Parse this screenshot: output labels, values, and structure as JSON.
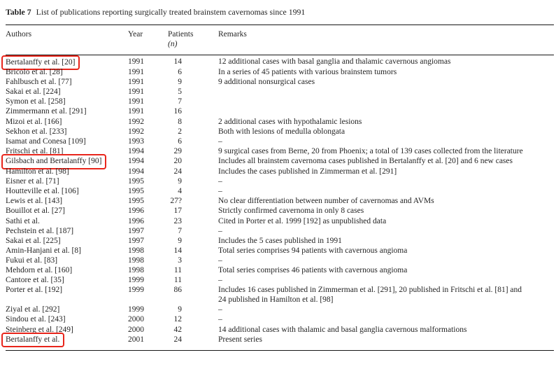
{
  "highlight_color": "#e8251b",
  "table": {
    "label": "Table 7",
    "caption": "List of publications reporting surgically treated brainstem cavernomas since 1991",
    "header": {
      "authors": "Authors",
      "year": "Year",
      "patients": "Patients",
      "patients_unit": "(n)",
      "remarks": "Remarks"
    },
    "rows": [
      {
        "authors": "Bertalanffy et al. [20]",
        "year": "1991",
        "patients": "14",
        "remarks": "12 additional cases with basal ganglia and thalamic cavernous angiomas",
        "highlighted": true
      },
      {
        "authors": "Bricolo et al. [28]",
        "year": "1991",
        "patients": "6",
        "remarks": "In a series of 45 patients with various brainstem tumors",
        "highlighted": false
      },
      {
        "authors": "Fahlbusch et al. [77]",
        "year": "1991",
        "patients": "9",
        "remarks": "9 additional nonsurgical cases",
        "highlighted": false
      },
      {
        "authors": "Sakai et al. [224]",
        "year": "1991",
        "patients": "5",
        "remarks": "",
        "highlighted": false
      },
      {
        "authors": "Symon et al. [258]",
        "year": "1991",
        "patients": "7",
        "remarks": "",
        "highlighted": false
      },
      {
        "authors": "Zimmermann et al. [291]",
        "year": "1991",
        "patients": "16",
        "remarks": "",
        "highlighted": false
      },
      {
        "authors": "Mizoi et al. [166]",
        "year": "1992",
        "patients": "8",
        "remarks": "2 additional cases with hypothalamic lesions",
        "highlighted": false
      },
      {
        "authors": "Sekhon et al. [233]",
        "year": "1992",
        "patients": "2",
        "remarks": "Both with lesions of medulla oblongata",
        "highlighted": false
      },
      {
        "authors": "Isamat and Conesa [109]",
        "year": "1993",
        "patients": "6",
        "remarks": "–",
        "highlighted": false
      },
      {
        "authors": "Fritschi et al. [81]",
        "year": "1994",
        "patients": "29",
        "remarks": "9 surgical cases from Berne, 20 from Phoenix; a total of 139 cases collected from the literature",
        "highlighted": false
      },
      {
        "authors": "Gilsbach and Bertalanffy [90]",
        "year": "1994",
        "patients": "20",
        "remarks": "Includes all brainstem cavernoma cases published in Bertalanffy et al. [20] and 6 new cases",
        "highlighted": true
      },
      {
        "authors": "Hamilton et al. [98]",
        "year": "1994",
        "patients": "24",
        "remarks": "Includes the cases published in Zimmerman et al. [291]",
        "highlighted": false
      },
      {
        "authors": "Eisner et al. [71]",
        "year": "1995",
        "patients": "9",
        "remarks": "–",
        "highlighted": false
      },
      {
        "authors": "Houtteville et al. [106]",
        "year": "1995",
        "patients": "4",
        "remarks": "–",
        "highlighted": false
      },
      {
        "authors": "Lewis et al. [143]",
        "year": "1995",
        "patients": "27?",
        "remarks": "No clear differentiation between number of cavernomas and AVMs",
        "highlighted": false
      },
      {
        "authors": "Bouillot et al. [27]",
        "year": "1996",
        "patients": "17",
        "remarks": "Strictly confirmed cavernoma in only 8 cases",
        "highlighted": false
      },
      {
        "authors": "Sathi et al.",
        "year": "1996",
        "patients": "23",
        "remarks": "Cited in Porter et al. 1999 [192] as unpublished data",
        "highlighted": false
      },
      {
        "authors": "Pechstein et al. [187]",
        "year": "1997",
        "patients": "7",
        "remarks": "–",
        "highlighted": false
      },
      {
        "authors": "Sakai et al. [225]",
        "year": "1997",
        "patients": "9",
        "remarks": "Includes the 5 cases published in 1991",
        "highlighted": false
      },
      {
        "authors": "Amin-Hanjani et al. [8]",
        "year": "1998",
        "patients": "14",
        "remarks": "Total series comprises 94 patients with cavernous angioma",
        "highlighted": false
      },
      {
        "authors": "Fukui et al. [83]",
        "year": "1998",
        "patients": "3",
        "remarks": "–",
        "highlighted": false
      },
      {
        "authors": "Mehdorn et al. [160]",
        "year": "1998",
        "patients": "11",
        "remarks": "Total series comprises 46 patients with cavernous angioma",
        "highlighted": false
      },
      {
        "authors": "Cantore et al. [35]",
        "year": "1999",
        "patients": "11",
        "remarks": "–",
        "highlighted": false
      },
      {
        "authors": "Porter et al. [192]",
        "year": "1999",
        "patients": "86",
        "remarks": "Includes 16 cases published in Zimmerman et al. [291], 20 published in Fritschi et al. [81] and 24 published in Hamilton et al. [98]",
        "highlighted": false
      },
      {
        "authors": "Ziyal et al. [292]",
        "year": "1999",
        "patients": "9",
        "remarks": "–",
        "highlighted": false
      },
      {
        "authors": "Sindou et al. [243]",
        "year": "2000",
        "patients": "12",
        "remarks": "–",
        "highlighted": false
      },
      {
        "authors": "Steinberg et al. [249]",
        "year": "2000",
        "patients": "42",
        "remarks": "14 additional cases with thalamic and basal ganglia cavernous malformations",
        "highlighted": false
      },
      {
        "authors": "Bertalanffy et al.",
        "year": "2001",
        "patients": "24",
        "remarks": "Present series",
        "highlighted": true
      }
    ]
  }
}
